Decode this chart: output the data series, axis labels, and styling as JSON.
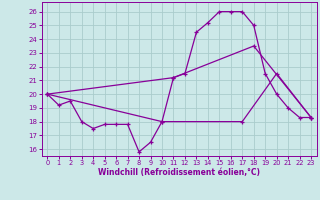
{
  "xlabel": "Windchill (Refroidissement éolien,°C)",
  "xlim": [
    -0.5,
    23.5
  ],
  "ylim": [
    15.5,
    26.7
  ],
  "yticks": [
    16,
    17,
    18,
    19,
    20,
    21,
    22,
    23,
    24,
    25,
    26
  ],
  "xticks": [
    0,
    1,
    2,
    3,
    4,
    5,
    6,
    7,
    8,
    9,
    10,
    11,
    12,
    13,
    14,
    15,
    16,
    17,
    18,
    19,
    20,
    21,
    22,
    23
  ],
  "background_color": "#cce8e8",
  "grid_color": "#aacccc",
  "line_color": "#880099",
  "line1_x": [
    0,
    1,
    2,
    3,
    4,
    5,
    6,
    7,
    8,
    9,
    10,
    11,
    12,
    13,
    14,
    15,
    16,
    17,
    18,
    19,
    20,
    21,
    22,
    23
  ],
  "line1_y": [
    20.0,
    19.2,
    19.5,
    18.0,
    17.5,
    17.8,
    17.8,
    17.8,
    15.8,
    16.5,
    18.0,
    21.2,
    21.5,
    24.5,
    25.2,
    26.0,
    26.0,
    26.0,
    25.0,
    21.5,
    20.0,
    19.0,
    18.3,
    18.3
  ],
  "line2_x": [
    0,
    11,
    18,
    23
  ],
  "line2_y": [
    20.0,
    21.2,
    23.5,
    18.3
  ],
  "line3_x": [
    0,
    10,
    17,
    20,
    23
  ],
  "line3_y": [
    20.0,
    18.0,
    18.0,
    21.5,
    18.3
  ]
}
